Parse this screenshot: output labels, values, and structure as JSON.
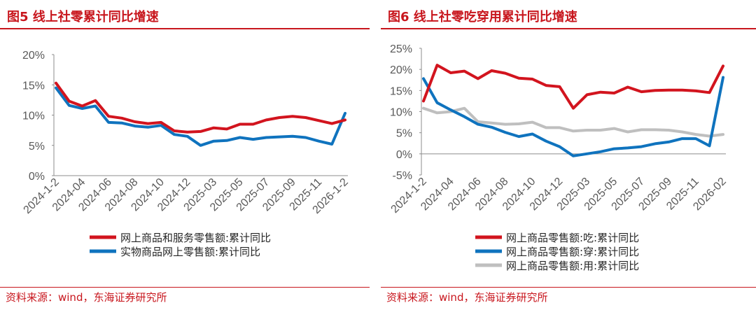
{
  "charts": [
    {
      "title": "图5  线上社零累计同比增速",
      "source": "资料来源：wind，东海证券研究所",
      "chart_data": {
        "type": "line",
        "ylim": [
          0,
          20
        ],
        "ylabel_unit": "%",
        "ytick_labels": [
          "0%",
          "5%",
          "10%",
          "15%",
          "20%"
        ],
        "xtick_labels": [
          "2024-1-2",
          "2024-04",
          "2024-06",
          "2024-08",
          "2024-10",
          "2024-12",
          "2025-03",
          "2025-05",
          "2025-07",
          "2025-09",
          "2025-11",
          "2026-1-2"
        ],
        "series": [
          {
            "name": "网上商品和服务零售额:累计同比",
            "color": "#d2141e",
            "values": [
              15.3,
              12.3,
              11.5,
              12.4,
              9.8,
              9.5,
              8.9,
              8.6,
              8.8,
              7.4,
              7.2,
              7.3,
              7.9,
              7.7,
              8.5,
              8.5,
              9.2,
              9.6,
              9.8,
              9.6,
              9.1,
              8.6,
              9.2
            ]
          },
          {
            "name": "实物商品网上零售额:累计同比",
            "color": "#0f73be",
            "values": [
              14.5,
              11.6,
              11.1,
              11.5,
              8.8,
              8.7,
              8.2,
              8.0,
              8.3,
              6.8,
              6.5,
              5.0,
              5.7,
              5.8,
              6.3,
              6.0,
              6.3,
              6.4,
              6.5,
              6.3,
              5.7,
              5.2,
              10.3
            ]
          }
        ]
      }
    },
    {
      "title": "图6  线上社零吃穿用累计同比增速",
      "source": "资料来源：wind，东海证券研究所",
      "chart_data": {
        "type": "line",
        "ylim": [
          -5,
          25
        ],
        "ylabel_unit": "%",
        "ytick_labels": [
          "-5%",
          "0%",
          "5%",
          "10%",
          "15%",
          "20%",
          "25%"
        ],
        "xtick_labels": [
          "2024-1-2",
          "2024-04",
          "2024-06",
          "2024-08",
          "2024-10",
          "2024-12",
          "2025-03",
          "2025-05",
          "2025-07",
          "2025-09",
          "2025-11",
          "2026-02"
        ],
        "series": [
          {
            "name": "网上商品零售额:吃:累计同比",
            "color": "#d2141e",
            "values": [
              12.5,
              21.0,
              19.2,
              19.6,
              17.8,
              19.7,
              19.1,
              17.9,
              17.7,
              16.2,
              15.9,
              10.8,
              14.0,
              14.6,
              14.4,
              15.8,
              14.7,
              15.0,
              15.1,
              15.1,
              14.9,
              14.5,
              20.8
            ]
          },
          {
            "name": "网上商品零售额:穿:累计同比",
            "color": "#0f73be",
            "values": [
              17.8,
              12.1,
              10.4,
              8.8,
              7.0,
              6.3,
              5.1,
              4.1,
              4.7,
              3.0,
              1.7,
              -0.5,
              0.0,
              0.5,
              1.2,
              1.4,
              1.7,
              2.4,
              2.8,
              3.6,
              3.6,
              1.9,
              18.1
            ]
          },
          {
            "name": "网上商品零售额:用:累计同比",
            "color": "#bfbfbf",
            "values": [
              10.8,
              9.7,
              10.0,
              10.8,
              7.6,
              7.3,
              7.0,
              7.1,
              7.5,
              6.2,
              6.2,
              5.4,
              5.6,
              5.6,
              6.0,
              5.2,
              5.7,
              5.7,
              5.6,
              5.2,
              4.6,
              4.2,
              4.6
            ]
          }
        ]
      }
    }
  ]
}
